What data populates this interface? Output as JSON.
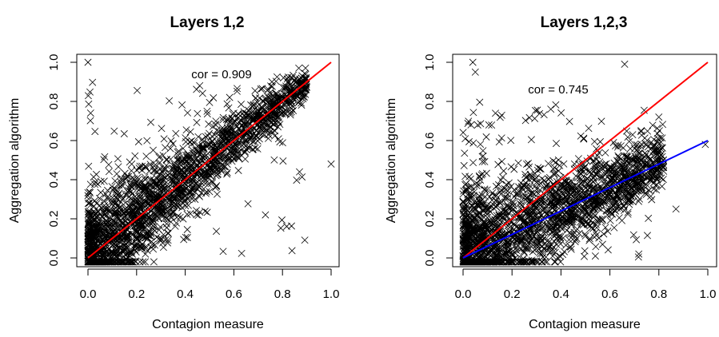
{
  "chart_data": [
    {
      "type": "scatter",
      "title": "Layers 1,2",
      "xlabel": "Contagion measure",
      "ylabel": "Aggregation algorithm",
      "xlim": [
        0.0,
        1.0
      ],
      "ylim": [
        0.0,
        1.0
      ],
      "xticks": [
        "0.0",
        "0.2",
        "0.4",
        "0.6",
        "0.8",
        "1.0"
      ],
      "yticks": [
        "0.0",
        "0.2",
        "0.4",
        "0.6",
        "0.8",
        "1.0"
      ],
      "annotation": "cor = 0.909",
      "grid": false,
      "marker": "x",
      "point_color": "#000000",
      "lines": [
        {
          "color": "#ff0000",
          "x": [
            0.0,
            1.0
          ],
          "y": [
            0.0,
            1.0
          ]
        }
      ],
      "sample_points": {
        "x": [
          0.0,
          1.0,
          0.87,
          0.73,
          0.6,
          0.22,
          0.18
        ],
        "y": [
          1.0,
          0.48,
          0.44,
          0.22,
          0.74,
          0.06,
          0.48
        ]
      }
    },
    {
      "type": "scatter",
      "title": "Layers 1,2,3",
      "xlabel": "Contagion measure",
      "ylabel": "Aggregation algorithm",
      "xlim": [
        0.0,
        1.0
      ],
      "ylim": [
        0.0,
        1.0
      ],
      "xticks": [
        "0.0",
        "0.2",
        "0.4",
        "0.6",
        "0.8",
        "1.0"
      ],
      "yticks": [
        "0.0",
        "0.2",
        "0.4",
        "0.6",
        "0.8",
        "1.0"
      ],
      "annotation": "cor = 0.745",
      "grid": false,
      "marker": "x",
      "point_color": "#000000",
      "lines": [
        {
          "color": "#ff0000",
          "x": [
            0.0,
            1.0
          ],
          "y": [
            0.0,
            1.0
          ]
        },
        {
          "color": "#0000ff",
          "x": [
            0.0,
            1.0
          ],
          "y": [
            0.0,
            0.6
          ]
        }
      ],
      "sample_points": {
        "x": [
          0.04,
          0.99,
          0.66,
          0.8,
          0.87,
          0.05
        ],
        "y": [
          1.0,
          0.58,
          0.99,
          0.72,
          0.25,
          0.95
        ]
      }
    }
  ]
}
